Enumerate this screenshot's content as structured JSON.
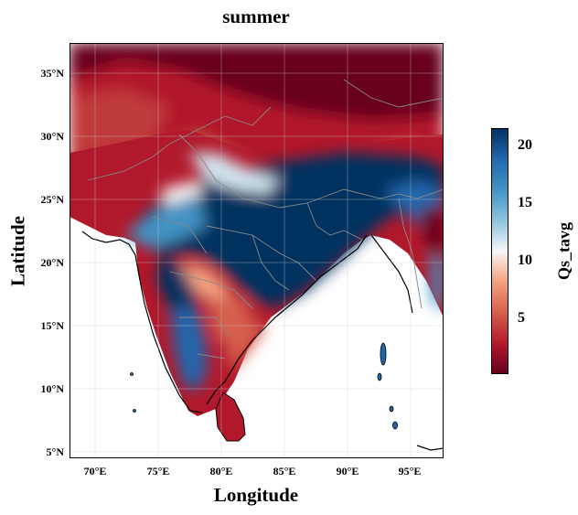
{
  "map": {
    "title": "summer",
    "xlabel": "Longitude",
    "ylabel": "Latitude",
    "x_ticks": [
      "70°E",
      "75°E",
      "80°E",
      "85°E",
      "90°E",
      "95°E"
    ],
    "y_ticks": [
      "35°N",
      "30°N",
      "25°N",
      "20°N",
      "15°N",
      "10°N",
      "5°N"
    ],
    "lon_range": [
      68,
      97.5
    ],
    "lat_range": [
      4.5,
      37.5
    ],
    "colormap": "RdBu",
    "colors": {
      "low": "#67001f",
      "mid": "#f7f7f7",
      "high": "#053061"
    },
    "colorbar": {
      "label": "Qs_tavg",
      "ticks": [
        "5",
        "10",
        "15",
        "20"
      ],
      "range": [
        0.3,
        21.8
      ]
    }
  }
}
